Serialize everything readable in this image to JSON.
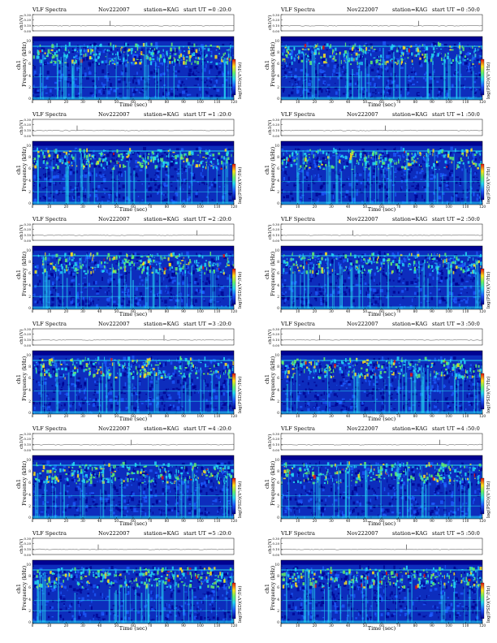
{
  "figure": {
    "header_left": "VLF Spectra",
    "date": "Nov222007",
    "station": "station=KAG",
    "start_prefix": "start  UT =",
    "top_ylabel": "ch1(V)",
    "spec_ylabel": "Frequency (kHz)",
    "channel_label": "ch1",
    "colorbar_label": "log(PSD)(V²/Hz)",
    "xlabel": "Time (sec)"
  },
  "chart_data": {
    "type": "heatmap",
    "panel_order": "row-major, two columns",
    "panels": [
      {
        "start": "0 :20:0"
      },
      {
        "start": "0 :50:0"
      },
      {
        "start": "1 :20:0"
      },
      {
        "start": "1 :50:0"
      },
      {
        "start": "2 :20:0"
      },
      {
        "start": "2 :50:0"
      },
      {
        "start": "3 :20:0"
      },
      {
        "start": "3 :50:0"
      },
      {
        "start": "4 :20:0"
      },
      {
        "start": "4 :50:0"
      },
      {
        "start": "5 :20:0"
      },
      {
        "start": "5 :50:0"
      }
    ],
    "x_ticks": [
      "0",
      "10",
      "20",
      "30",
      "40",
      "50",
      "60",
      "70",
      "80",
      "90",
      "100",
      "110",
      "120"
    ],
    "xlim": [
      0,
      120
    ],
    "y_ticks": [
      "0",
      "2",
      "4",
      "6",
      "8",
      "10"
    ],
    "ylim": [
      0,
      11
    ],
    "top_ticks": [
      "0.30",
      "0.20",
      "0.10",
      "0.00"
    ],
    "top_ylim": [
      0,
      0.3
    ],
    "colors": {
      "background": "#0d2dbd",
      "low": "#00008f",
      "mid": "#1e5cff",
      "cyan": "#25d8f2",
      "green": "#64f26a",
      "yellow": "#ffe31a",
      "red": "#e21212"
    }
  }
}
